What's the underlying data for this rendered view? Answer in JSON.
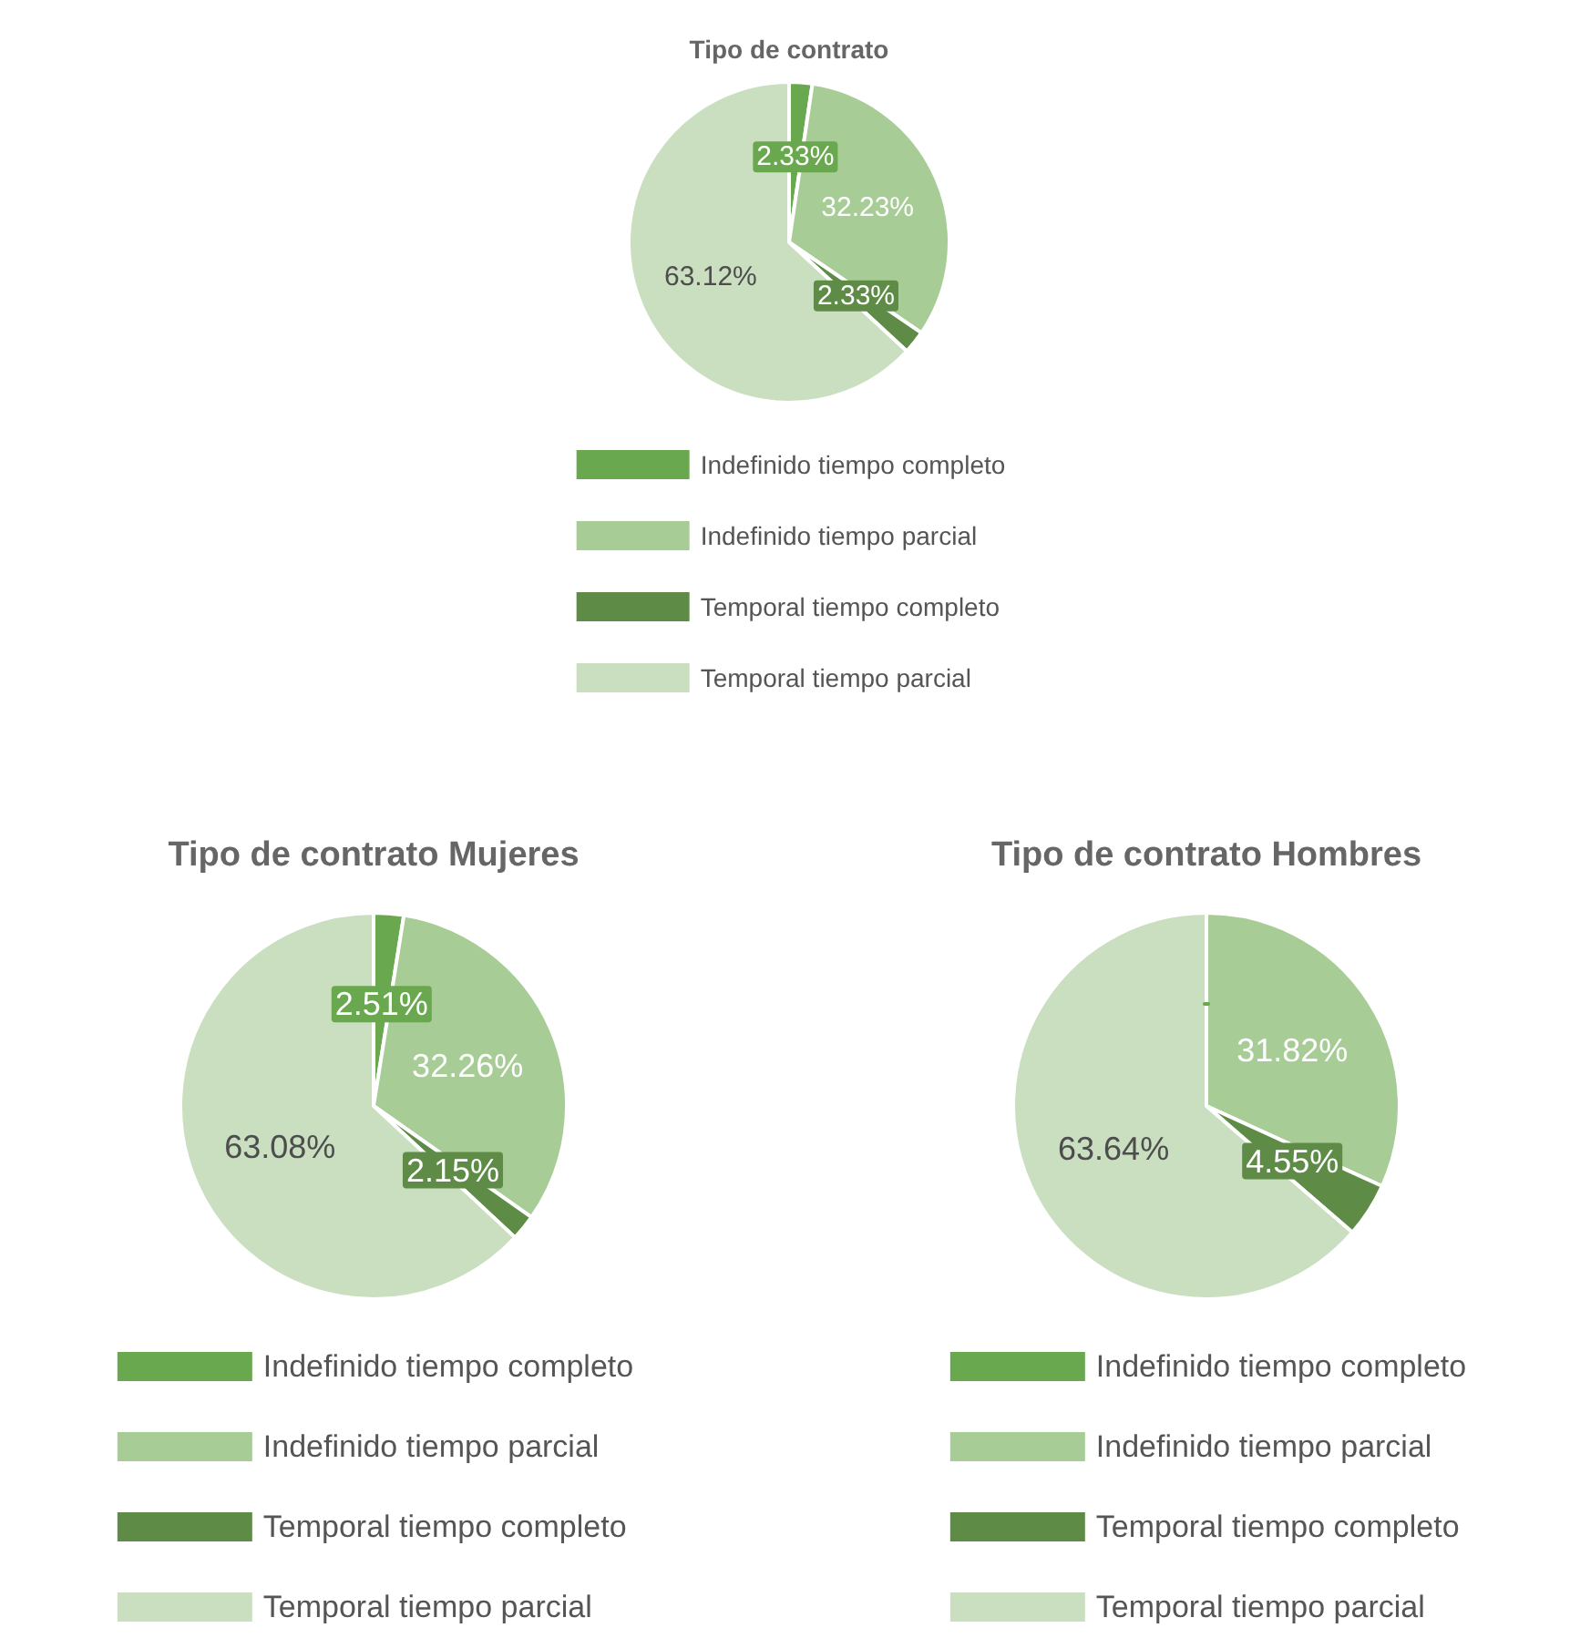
{
  "chart_data": [
    {
      "type": "pie",
      "title": "Tipo de contrato",
      "categories": [
        "Indefinido tiempo completo",
        "Indefinido tiempo parcial",
        "Temporal tiempo completo",
        "Temporal tiempo parcial"
      ],
      "values": [
        2.33,
        32.23,
        2.33,
        63.12
      ],
      "value_labels": [
        "2.33%",
        "32.23%",
        "2.33%",
        "63.12%"
      ],
      "colors": [
        "#6aa84f",
        "#a8cc96",
        "#5e8c47",
        "#c9dfc0"
      ],
      "legend": "bottom"
    },
    {
      "type": "pie",
      "title": "Tipo de contrato Mujeres",
      "categories": [
        "Indefinido tiempo completo",
        "Indefinido tiempo parcial",
        "Temporal tiempo completo",
        "Temporal tiempo parcial"
      ],
      "values": [
        2.51,
        32.26,
        2.15,
        63.08
      ],
      "value_labels": [
        "2.51%",
        "32.26%",
        "2.15%",
        "63.08%"
      ],
      "colors": [
        "#6aa84f",
        "#a8cc96",
        "#5e8c47",
        "#c9dfc0"
      ],
      "legend": "bottom"
    },
    {
      "type": "pie",
      "title": "Tipo de contrato Hombres",
      "categories": [
        "Indefinido tiempo completo",
        "Indefinido tiempo parcial",
        "Temporal tiempo completo",
        "Temporal tiempo parcial"
      ],
      "values": [
        0,
        31.82,
        4.55,
        63.64
      ],
      "value_labels": [
        null,
        "31.82%",
        "4.55%",
        "63.64%"
      ],
      "colors": [
        "#6aa84f",
        "#a8cc96",
        "#5e8c47",
        "#c9dfc0"
      ],
      "legend": "bottom"
    }
  ]
}
